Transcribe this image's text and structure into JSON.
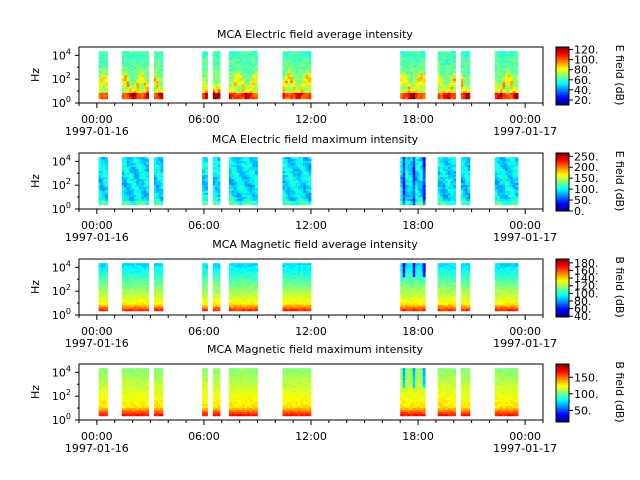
{
  "chart_data": [
    {
      "type": "heatmap",
      "title": "MCA  Electric field average intensity",
      "ylabel": "Hz",
      "x_ticks": [
        "00:00",
        "06:00",
        "12:00",
        "18:00",
        "00:00"
      ],
      "date_labels": [
        "1997-01-16",
        "1997-01-17"
      ],
      "y_tick_labels": [
        {
          "base": "10",
          "exp": "0"
        },
        {
          "base": "10",
          "exp": "2"
        },
        {
          "base": "10",
          "exp": "4"
        }
      ],
      "x_range_hours": [
        -1,
        25
      ],
      "y_range_log10": [
        0,
        4.7
      ],
      "data_intervals_hours": [
        [
          0.1,
          0.6
        ],
        [
          1.4,
          2.9
        ],
        [
          3.2,
          3.7
        ],
        [
          5.9,
          6.2
        ],
        [
          6.5,
          6.9
        ],
        [
          7.4,
          9.0
        ],
        [
          10.4,
          12.0
        ],
        [
          17.0,
          18.4
        ],
        [
          19.1,
          20.1
        ],
        [
          20.4,
          20.9
        ],
        [
          22.3,
          23.6
        ]
      ],
      "colorbar": {
        "label": "E field (dB)",
        "min": 10,
        "max": 125,
        "ticks": [
          "120",
          "100",
          "80",
          "60",
          "40",
          "20"
        ],
        "tick_values": [
          120,
          100,
          80,
          60,
          40,
          20
        ]
      }
    },
    {
      "type": "heatmap",
      "title": "MCA  Electric field maximum intensity",
      "ylabel": "Hz",
      "x_ticks": [
        "00:00",
        "06:00",
        "12:00",
        "18:00",
        "00:00"
      ],
      "date_labels": [
        "1997-01-16",
        "1997-01-17"
      ],
      "y_tick_labels": [
        {
          "base": "10",
          "exp": "0"
        },
        {
          "base": "10",
          "exp": "2"
        },
        {
          "base": "10",
          "exp": "4"
        }
      ],
      "x_range_hours": [
        -1,
        25
      ],
      "y_range_log10": [
        0,
        4.7
      ],
      "data_intervals_hours": [
        [
          0.1,
          0.6
        ],
        [
          1.4,
          2.9
        ],
        [
          3.2,
          3.7
        ],
        [
          5.9,
          6.2
        ],
        [
          6.5,
          6.9
        ],
        [
          7.4,
          9.0
        ],
        [
          10.4,
          12.0
        ],
        [
          17.0,
          18.4
        ],
        [
          19.1,
          20.1
        ],
        [
          20.4,
          20.9
        ],
        [
          22.3,
          23.6
        ]
      ],
      "colorbar": {
        "label": "E field (dB)",
        "min": 0,
        "max": 265,
        "ticks": [
          "250",
          "200",
          "150",
          "100",
          "50",
          "0"
        ],
        "tick_values": [
          250,
          200,
          150,
          100,
          50,
          0
        ]
      }
    },
    {
      "type": "heatmap",
      "title": "MCA  Magnetic field average intensity",
      "ylabel": "Hz",
      "x_ticks": [
        "00:00",
        "06:00",
        "12:00",
        "18:00",
        "00:00"
      ],
      "date_labels": [
        "1997-01-16",
        "1997-01-17"
      ],
      "y_tick_labels": [
        {
          "base": "10",
          "exp": "0"
        },
        {
          "base": "10",
          "exp": "2"
        },
        {
          "base": "10",
          "exp": "4"
        }
      ],
      "x_range_hours": [
        -1,
        25
      ],
      "y_range_log10": [
        0,
        4.7
      ],
      "data_intervals_hours": [
        [
          0.1,
          0.6
        ],
        [
          1.4,
          2.9
        ],
        [
          3.2,
          3.7
        ],
        [
          5.9,
          6.2
        ],
        [
          6.5,
          6.9
        ],
        [
          7.4,
          9.0
        ],
        [
          10.4,
          12.0
        ],
        [
          17.0,
          18.4
        ],
        [
          19.1,
          20.1
        ],
        [
          20.4,
          20.9
        ],
        [
          22.3,
          23.6
        ]
      ],
      "colorbar": {
        "label": "B field (dB)",
        "min": 38,
        "max": 190,
        "ticks": [
          "180",
          "160",
          "140",
          "120",
          "100",
          "80",
          "60",
          "40"
        ],
        "tick_values": [
          180,
          160,
          140,
          120,
          100,
          80,
          60,
          40
        ]
      }
    },
    {
      "type": "heatmap",
      "title": "MCA  Magnetic field maximum intensity",
      "ylabel": "Hz",
      "x_ticks": [
        "00:00",
        "06:00",
        "12:00",
        "18:00",
        "00:00"
      ],
      "date_labels": [
        "1997-01-16",
        "1997-01-17"
      ],
      "y_tick_labels": [
        {
          "base": "10",
          "exp": "0"
        },
        {
          "base": "10",
          "exp": "2"
        },
        {
          "base": "10",
          "exp": "4"
        }
      ],
      "x_range_hours": [
        -1,
        25
      ],
      "y_range_log10": [
        0,
        4.7
      ],
      "data_intervals_hours": [
        [
          0.1,
          0.6
        ],
        [
          1.4,
          2.9
        ],
        [
          3.2,
          3.7
        ],
        [
          5.9,
          6.2
        ],
        [
          6.5,
          6.9
        ],
        [
          7.4,
          9.0
        ],
        [
          10.4,
          12.0
        ],
        [
          17.0,
          18.4
        ],
        [
          19.1,
          20.1
        ],
        [
          20.4,
          20.9
        ],
        [
          22.3,
          23.6
        ]
      ],
      "colorbar": {
        "label": "B field (dB)",
        "min": 15,
        "max": 190,
        "ticks": [
          "150",
          "100",
          "50"
        ],
        "tick_values": [
          150,
          100,
          50
        ]
      }
    }
  ]
}
